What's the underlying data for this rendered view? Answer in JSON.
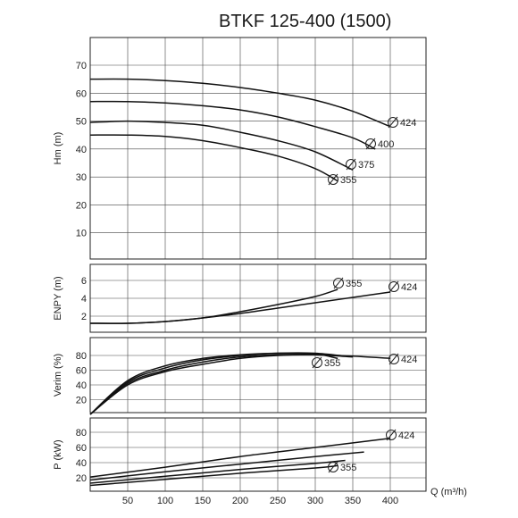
{
  "chart_data": {
    "type": "line",
    "title": "BTKF 125-400 (1500)",
    "x_axis": {
      "label": "Q (m³/h)",
      "range": [
        0,
        400
      ],
      "ticks": [
        "50",
        "100",
        "150",
        "200",
        "250",
        "300",
        "350",
        "400"
      ]
    },
    "panels": [
      {
        "id": "head",
        "ylabel": "Hm (m)",
        "ylim": [
          0,
          75
        ],
        "yticks": [
          "10",
          "20",
          "30",
          "40",
          "50",
          "60",
          "70"
        ],
        "series": [
          {
            "name": "Ø424",
            "x": [
              0,
              50,
              100,
              150,
              200,
              250,
              300,
              350,
              400
            ],
            "y": [
              65,
              65,
              64.5,
              63.5,
              62,
              60,
              57.5,
              53.5,
              48
            ]
          },
          {
            "name": "Ø400",
            "x": [
              0,
              50,
              100,
              150,
              200,
              250,
              300,
              350,
              380
            ],
            "y": [
              57,
              57,
              56.5,
              55.5,
              54,
              51.5,
              48,
              44,
              40
            ]
          },
          {
            "name": "Ø375",
            "x": [
              0,
              50,
              100,
              150,
              200,
              250,
              300,
              350
            ],
            "y": [
              49.5,
              50,
              49.5,
              48.5,
              46,
              43,
              39,
              32.5
            ]
          },
          {
            "name": "Ø355",
            "x": [
              0,
              50,
              100,
              150,
              200,
              250,
              300,
              330
            ],
            "y": [
              45,
              45,
              44.5,
              43,
              40.5,
              37.5,
              33,
              28.5
            ]
          }
        ],
        "labels": [
          "Ø424",
          "Ø400",
          "Ø375",
          "Ø355"
        ]
      },
      {
        "id": "npsh",
        "ylabel": "ENPY (m)",
        "ylim": [
          0,
          7
        ],
        "yticks": [
          "2",
          "4",
          "6"
        ],
        "series": [
          {
            "name": "Ø355",
            "x": [
              0,
              50,
              100,
              150,
              200,
              250,
              300,
              330
            ],
            "y": [
              1.2,
              1.2,
              1.4,
              1.8,
              2.5,
              3.3,
              4.2,
              5.0
            ]
          },
          {
            "name": "Ø424",
            "x": [
              0,
              50,
              100,
              150,
              200,
              250,
              300,
              350,
              400
            ],
            "y": [
              1.2,
              1.2,
              1.4,
              1.8,
              2.3,
              2.9,
              3.5,
              4.1,
              4.7
            ]
          }
        ],
        "labels": [
          "Ø355",
          "Ø424"
        ]
      },
      {
        "id": "efficiency",
        "ylabel": "Verim (%)",
        "ylim": [
          0,
          100
        ],
        "yticks": [
          "20",
          "40",
          "60",
          "80"
        ],
        "series": [
          {
            "name": "Ø424",
            "x": [
              0,
              50,
              100,
              150,
              200,
              250,
              300,
              350,
              400
            ],
            "y": [
              0,
              40,
              58,
              68,
              76,
              80,
              81,
              79,
              76
            ]
          },
          {
            "name": "Ø400",
            "x": [
              0,
              50,
              100,
              150,
              200,
              250,
              300,
              350
            ],
            "y": [
              0,
              42,
              60,
              71,
              78,
              81,
              81,
              78
            ]
          },
          {
            "name": "Ø375",
            "x": [
              0,
              50,
              100,
              150,
              200,
              250,
              300,
              340
            ],
            "y": [
              0,
              44,
              63,
              74,
              80,
              83,
              83,
              79
            ]
          },
          {
            "name": "Ø355",
            "x": [
              0,
              50,
              100,
              150,
              200,
              250,
              300,
              330
            ],
            "y": [
              0,
              46,
              66,
              76,
              81,
              83,
              82,
              76
            ]
          }
        ],
        "labels": [
          "Ø355",
          "Ø424"
        ]
      },
      {
        "id": "power",
        "ylabel": "P (kW)",
        "ylim": [
          0,
          90
        ],
        "yticks": [
          "20",
          "40",
          "60",
          "80"
        ],
        "series": [
          {
            "name": "Ø424",
            "x": [
              0,
              100,
              200,
              300,
              400
            ],
            "y": [
              21,
              34,
              48,
              60,
              72
            ]
          },
          {
            "name": "Ø400",
            "x": [
              0,
              100,
              200,
              300,
              365
            ],
            "y": [
              17,
              28,
              38,
              48,
              54
            ]
          },
          {
            "name": "Ø375",
            "x": [
              0,
              100,
              200,
              300,
              340
            ],
            "y": [
              13,
              22,
              31,
              39,
              43
            ]
          },
          {
            "name": "Ø355",
            "x": [
              0,
              100,
              200,
              300,
              330
            ],
            "y": [
              10,
              18,
              26,
              33,
              36
            ]
          }
        ],
        "labels": [
          "Ø424",
          "Ø355"
        ]
      }
    ]
  },
  "title": "BTKF 125-400 (1500)"
}
